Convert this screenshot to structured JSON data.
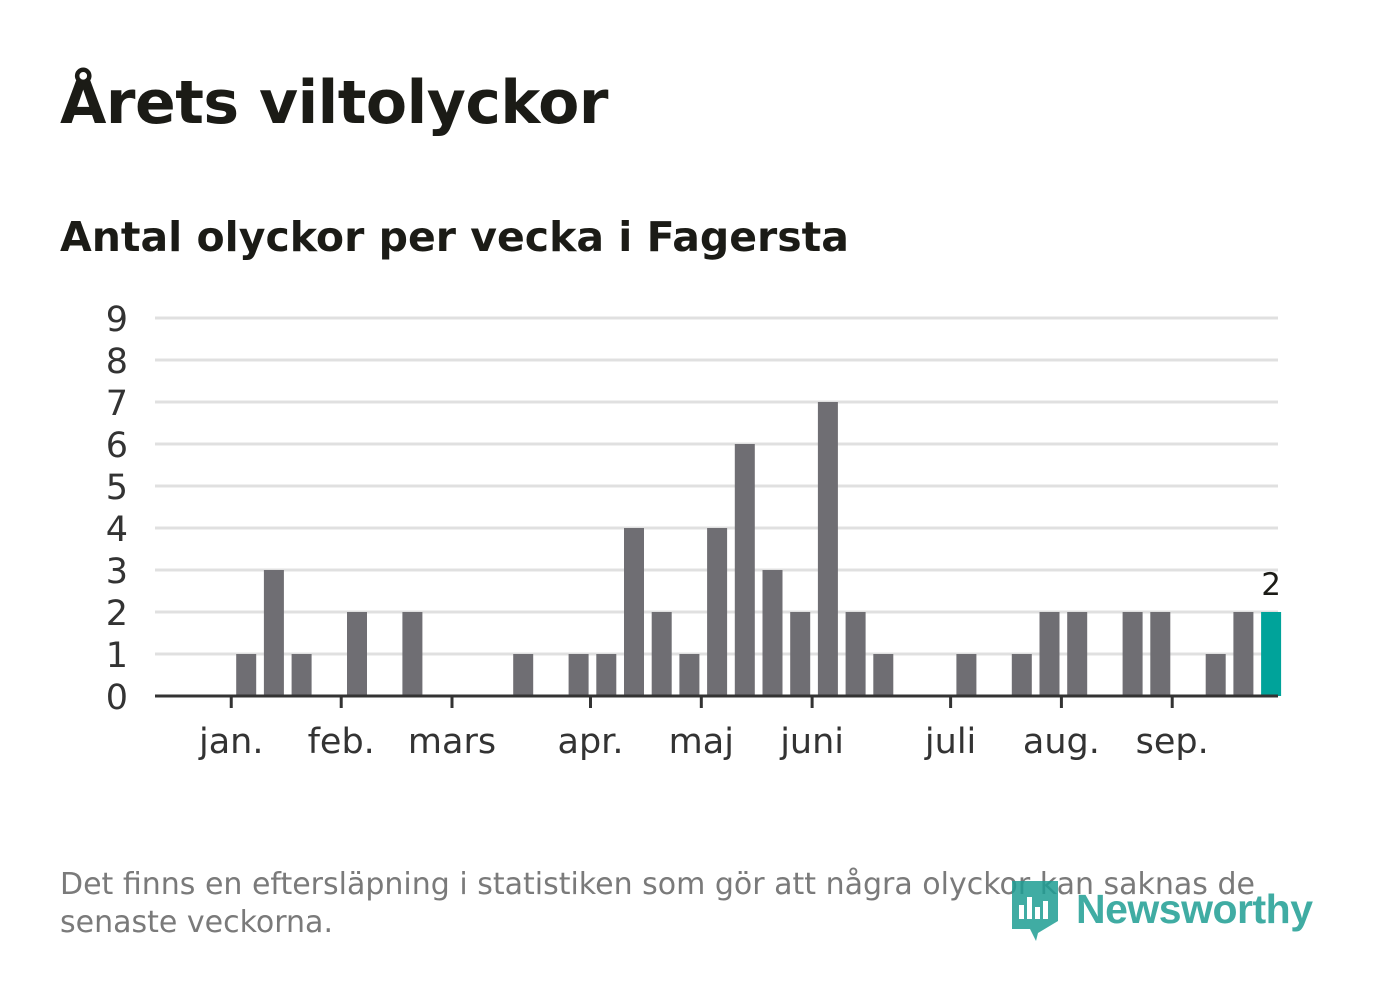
{
  "header": {
    "title": "Årets viltolyckor",
    "subtitle": "Antal olyckor per vecka i Fagersta"
  },
  "footer": {
    "note": "Det finns en eftersläpning i statistiken som gör att några olyckor kan saknas de senaste veckorna.",
    "brand": "Newsworthy"
  },
  "colors": {
    "bar": "#6f6e73",
    "highlight": "#00a39a",
    "grid": "#e0e0e0",
    "axis": "#333333",
    "text": "#1b1b16",
    "footnote": "#7a7a7a",
    "brand": "#1f9e94"
  },
  "chart_data": {
    "type": "bar",
    "x": [
      1,
      2,
      3,
      4,
      5,
      6,
      7,
      8,
      9,
      10,
      11,
      12,
      13,
      14,
      15,
      16,
      17,
      18,
      19,
      20,
      21,
      22,
      23,
      24,
      25,
      26,
      27,
      28,
      29,
      30,
      31,
      32,
      33,
      34,
      35,
      36,
      37,
      38,
      39
    ],
    "values": [
      0,
      1,
      3,
      1,
      0,
      2,
      0,
      2,
      0,
      0,
      0,
      1,
      0,
      1,
      1,
      4,
      2,
      1,
      4,
      6,
      3,
      2,
      7,
      2,
      1,
      0,
      0,
      1,
      0,
      1,
      2,
      2,
      0,
      2,
      2,
      0,
      1,
      2,
      2
    ],
    "highlight_index": 38,
    "highlight_label": "2",
    "yticks": [
      0,
      1,
      2,
      3,
      4,
      5,
      6,
      7,
      8,
      9
    ],
    "ylim": [
      0,
      9
    ],
    "month_labels": [
      "jan.",
      "feb.",
      "mars",
      "apr.",
      "maj",
      "juni",
      "juli",
      "aug.",
      "sep."
    ],
    "month_ticks": [
      1.46,
      5.43,
      9.43,
      14.43,
      18.43,
      22.43,
      27.43,
      31.43,
      35.43
    ],
    "grid": true,
    "legend": "none"
  }
}
